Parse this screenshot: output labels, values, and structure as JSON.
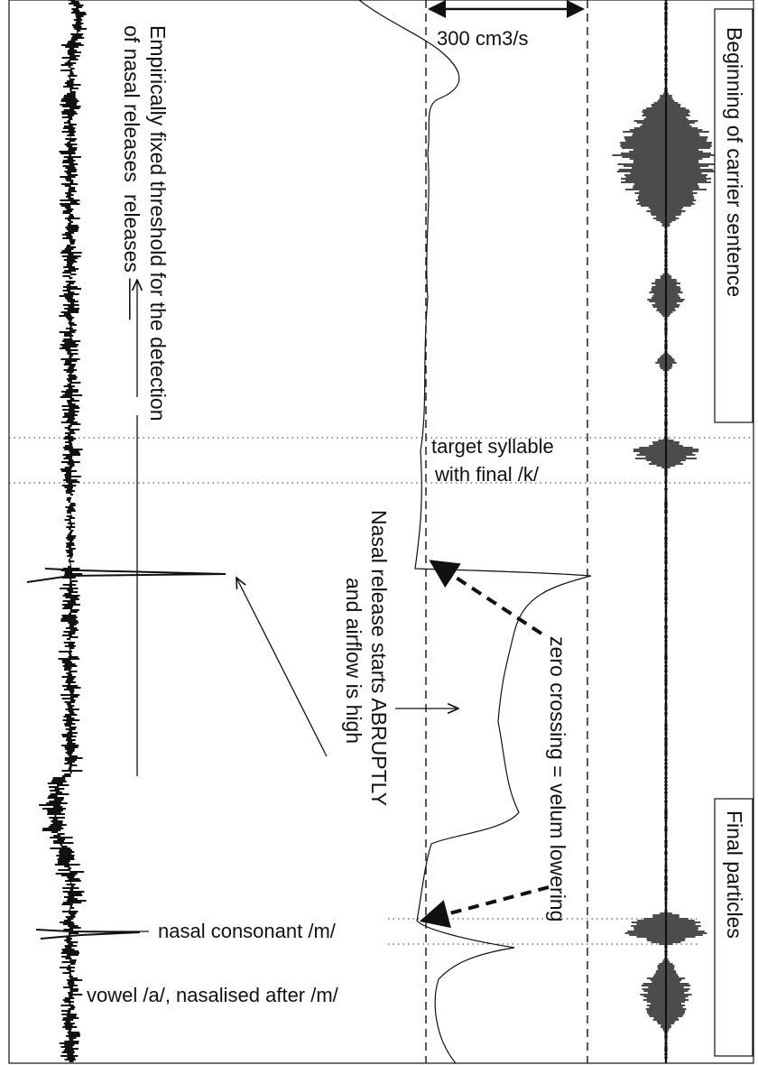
{
  "annotations": {
    "threshold_label_line1": "Empirically fixed threshold for the detection",
    "threshold_label_line2": "of nasal releases",
    "flow_scale": "300 cm3/s",
    "beginning_label": "Beginning of carrier sentence",
    "target_line1": "target syllable",
    "target_line2": "with final /k/",
    "nasal_release_line1": "Nasal release starts ABRUPTLY",
    "nasal_release_line2": "and airflow is high",
    "zero_crossing": "zero crossing = velum lowering",
    "final_particles": "Final particles",
    "nasal_consonant": "nasal consonant /m/",
    "vowel": "vowel /a/, nasalised after /m/"
  },
  "traces": {
    "left_trace": "nasal-acoustic-signal",
    "middle_trace": "nasal-airflow",
    "right_trace": "oral-acoustic-signal"
  },
  "colors": {
    "ink": "#111111",
    "background": "#ffffff"
  }
}
